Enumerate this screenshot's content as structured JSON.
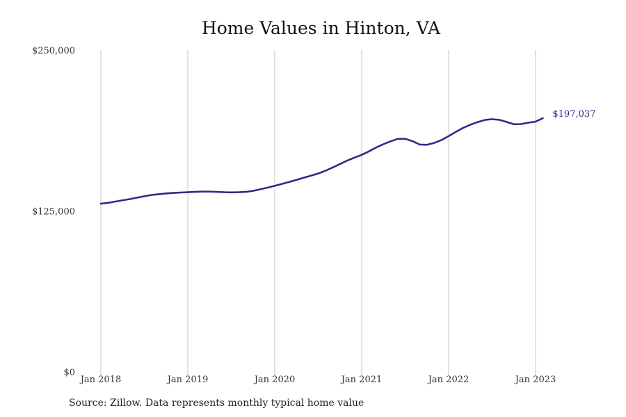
{
  "chart_data": {
    "type": "line",
    "title": "Home Values in Hinton, VA",
    "xlabel": "",
    "ylabel": "",
    "ylim": [
      0,
      250000
    ],
    "y_ticks": [
      "$0",
      "$125,000",
      "$250,000"
    ],
    "y_tick_values": [
      0,
      125000,
      250000
    ],
    "x_ticks": [
      "Jan 2018",
      "Jan 2019",
      "Jan 2020",
      "Jan 2021",
      "Jan 2022",
      "Jan 2023"
    ],
    "x_tick_values": [
      2018,
      2019,
      2020,
      2021,
      2022,
      2023
    ],
    "grid": "vertical",
    "line_color": "#2e2a8c",
    "end_label": "$197,037",
    "series": [
      {
        "x": [
          2018.0,
          2018.083,
          2018.167,
          2018.25,
          2018.333,
          2018.417,
          2018.5,
          2018.583,
          2018.667,
          2018.75,
          2018.833,
          2018.917,
          2019.0,
          2019.083,
          2019.167,
          2019.25,
          2019.333,
          2019.417,
          2019.5,
          2019.583,
          2019.667,
          2019.75,
          2019.833,
          2019.917,
          2020.0,
          2020.083,
          2020.167,
          2020.25,
          2020.333,
          2020.417,
          2020.5,
          2020.583,
          2020.667,
          2020.75,
          2020.833,
          2020.917,
          2021.0,
          2021.083,
          2021.167,
          2021.25,
          2021.333,
          2021.417,
          2021.5,
          2021.583,
          2021.667,
          2021.75,
          2021.833,
          2021.917,
          2022.0,
          2022.083,
          2022.167,
          2022.25,
          2022.333,
          2022.417,
          2022.5,
          2022.583,
          2022.667,
          2022.75,
          2022.833,
          2022.917,
          2023.0,
          2023.083
        ],
        "values": [
          130600,
          131300,
          132300,
          133300,
          134200,
          135300,
          136400,
          137400,
          138000,
          138600,
          139000,
          139300,
          139500,
          139800,
          140000,
          140000,
          139800,
          139500,
          139400,
          139500,
          139800,
          140600,
          141800,
          143100,
          144500,
          146000,
          147500,
          149100,
          150800,
          152400,
          154100,
          156200,
          158800,
          161400,
          164100,
          166400,
          168600,
          171300,
          174300,
          176900,
          179100,
          181000,
          181000,
          179200,
          176600,
          176400,
          177800,
          180000,
          183100,
          186400,
          189600,
          192000,
          194000,
          195700,
          196300,
          195800,
          194100,
          192400,
          192500,
          193600,
          194400,
          197037
        ]
      }
    ]
  },
  "footer": {
    "source": "Source: Zillow. Data represents monthly typical home value"
  }
}
